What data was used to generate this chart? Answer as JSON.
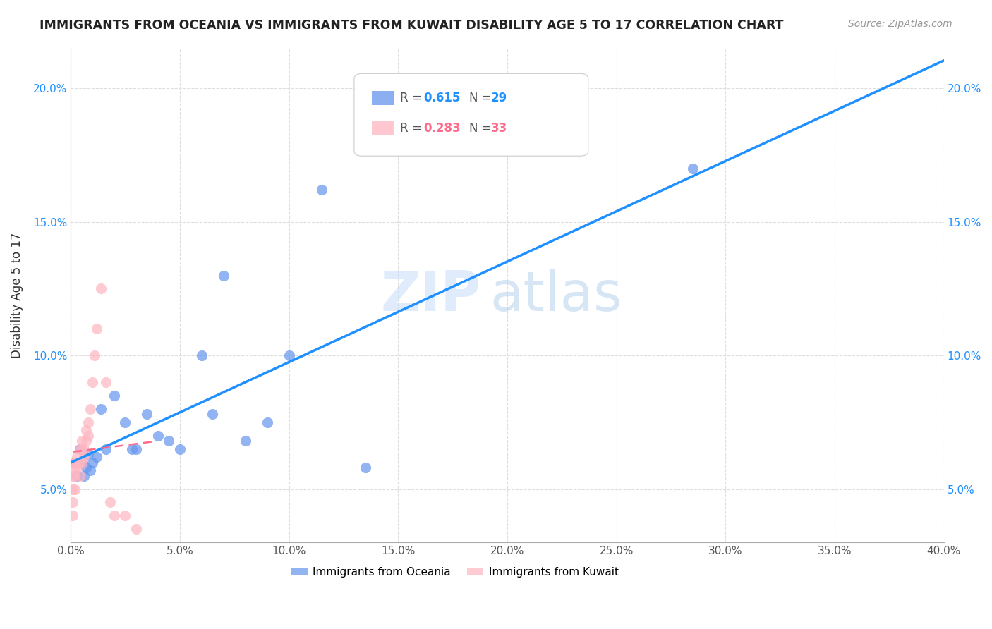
{
  "title": "IMMIGRANTS FROM OCEANIA VS IMMIGRANTS FROM KUWAIT DISABILITY AGE 5 TO 17 CORRELATION CHART",
  "source": "Source: ZipAtlas.com",
  "ylabel": "Disability Age 5 to 17",
  "xlim": [
    0,
    0.4
  ],
  "ylim": [
    0.03,
    0.215
  ],
  "xticks": [
    0.0,
    0.05,
    0.1,
    0.15,
    0.2,
    0.25,
    0.3,
    0.35,
    0.4
  ],
  "yticks_left": [
    0.05,
    0.1,
    0.15,
    0.2
  ],
  "ytick_labels_left": [
    "5.0%",
    "10.0%",
    "15.0%",
    "20.0%"
  ],
  "ytick_labels_right": [
    "5.0%",
    "10.0%",
    "15.0%",
    "20.0%"
  ],
  "xtick_labels": [
    "0.0%",
    "5.0%",
    "10.0%",
    "15.0%",
    "20.0%",
    "25.0%",
    "30.0%",
    "35.0%",
    "40.0%"
  ],
  "blue_color": "#6495ED",
  "pink_color": "#FFB6C1",
  "blue_line_color": "#1E90FF",
  "pink_line_color": "#FF6B8A",
  "watermark_zip": "ZIP",
  "watermark_atlas": "atlas",
  "oceania_x": [
    0.002,
    0.003,
    0.004,
    0.005,
    0.006,
    0.007,
    0.008,
    0.009,
    0.01,
    0.012,
    0.014,
    0.016,
    0.02,
    0.025,
    0.028,
    0.03,
    0.035,
    0.04,
    0.045,
    0.05,
    0.06,
    0.065,
    0.07,
    0.08,
    0.09,
    0.1,
    0.115,
    0.135,
    0.285
  ],
  "oceania_y": [
    0.06,
    0.055,
    0.065,
    0.06,
    0.055,
    0.058,
    0.063,
    0.057,
    0.06,
    0.062,
    0.08,
    0.065,
    0.085,
    0.075,
    0.065,
    0.065,
    0.078,
    0.07,
    0.068,
    0.065,
    0.1,
    0.078,
    0.13,
    0.068,
    0.075,
    0.1,
    0.162,
    0.058,
    0.17
  ],
  "kuwait_x": [
    0.001,
    0.001,
    0.001,
    0.001,
    0.002,
    0.002,
    0.002,
    0.002,
    0.003,
    0.003,
    0.003,
    0.004,
    0.004,
    0.004,
    0.005,
    0.005,
    0.005,
    0.006,
    0.006,
    0.007,
    0.007,
    0.008,
    0.008,
    0.009,
    0.01,
    0.011,
    0.012,
    0.014,
    0.016,
    0.018,
    0.02,
    0.025,
    0.03
  ],
  "kuwait_y": [
    0.04,
    0.045,
    0.05,
    0.055,
    0.05,
    0.055,
    0.058,
    0.06,
    0.058,
    0.06,
    0.062,
    0.055,
    0.06,
    0.065,
    0.06,
    0.065,
    0.068,
    0.062,
    0.065,
    0.068,
    0.072,
    0.07,
    0.075,
    0.08,
    0.09,
    0.1,
    0.11,
    0.125,
    0.09,
    0.045,
    0.04,
    0.04,
    0.035
  ]
}
